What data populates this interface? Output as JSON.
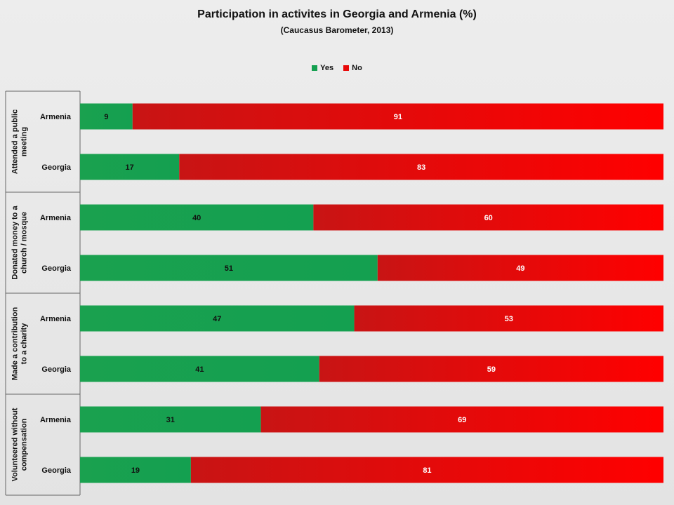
{
  "chart_data": {
    "type": "bar",
    "stacked": true,
    "orientation": "horizontal",
    "title": "Participation in activites in Georgia and Armenia (%)",
    "subtitle": "(Caucasus Barometer, 2013)",
    "xlim": [
      0,
      100
    ],
    "legend_position": "top",
    "groups": [
      "Attended a public meeting",
      "Donated money to a church / mosque",
      "Made a contribution to a charity",
      "Volunteered without compensation"
    ],
    "categories": [
      [
        "Armenia",
        "Georgia"
      ],
      [
        "Armenia",
        "Georgia"
      ],
      [
        "Armenia",
        "Georgia"
      ],
      [
        "Armenia",
        "Georgia"
      ]
    ],
    "series": [
      {
        "name": "Yes",
        "color": "#14a050",
        "values": [
          [
            9,
            17
          ],
          [
            40,
            51
          ],
          [
            47,
            41
          ],
          [
            31,
            19
          ]
        ]
      },
      {
        "name": "No",
        "color": "#e80808",
        "values": [
          [
            91,
            83
          ],
          [
            60,
            49
          ],
          [
            53,
            59
          ],
          [
            69,
            81
          ]
        ]
      }
    ]
  }
}
